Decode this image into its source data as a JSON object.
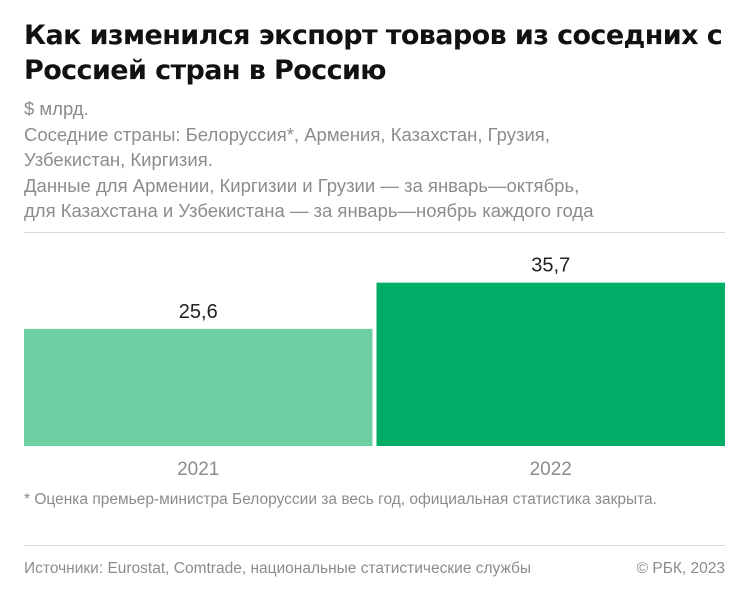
{
  "header": {
    "title": "Как изменился экспорт товаров из соседних с Россией стран в Россию",
    "subtitle_lines": [
      "$ млрд.",
      "Соседние страны: Белоруссия*, Армения, Казахстан, Грузия,",
      "Узбекистан, Киргизия.",
      "Данные для Армении, Киргизии и Грузии — за январь—октябрь,",
      "для Казахстана и Узбекистана — за январь—ноябрь каждого года"
    ]
  },
  "chart_data": {
    "type": "bar",
    "categories": [
      "2021",
      "2022"
    ],
    "values": [
      25.6,
      35.7
    ],
    "value_labels": [
      "25,6",
      "35,7"
    ],
    "title": "Как изменился экспорт товаров из соседних с Россией стран в Россию",
    "xlabel": "",
    "ylabel": "$ млрд.",
    "ylim": [
      0,
      40
    ],
    "grid": false,
    "legend": "none",
    "colors": [
      "#6dcfa3",
      "#00ad67"
    ]
  },
  "note": "* Оценка премьер-министра Белоруссии за весь год, официальная статистика закрыта.",
  "footer": {
    "sources": "Источники: Eurostat, Comtrade, национальные статистические службы",
    "copyright": "© РБК, 2023"
  }
}
